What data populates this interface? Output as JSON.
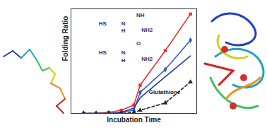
{
  "chart_data": {
    "type": "line",
    "x_label": "Incubation Time",
    "y_label": "Folding Ratio",
    "xlim": [
      0,
      10
    ],
    "ylim": [
      0,
      1
    ],
    "xticks": [],
    "yticks": [],
    "tick_labels": false,
    "grid": false,
    "x": [
      1,
      2,
      3,
      4,
      5,
      5.5,
      7.5,
      9.5
    ],
    "series": [
      {
        "color": "#e8302a",
        "marker": "square",
        "line_style": "solid",
        "values": [
          0,
          0,
          0.01,
          0.03,
          0.08,
          0.27,
          0.6,
          0.95
        ]
      },
      {
        "color": "#2f5fd0",
        "marker": "diamond",
        "line_style": "solid",
        "values": [
          0,
          0,
          0,
          0.01,
          0.03,
          0.2,
          0.42,
          0.7
        ]
      },
      {
        "color": "#1f3f9a",
        "marker": "none",
        "line_style": "solid",
        "values": [
          0,
          0,
          0,
          0.01,
          0.05,
          0.15,
          0.35,
          0.55
        ]
      },
      {
        "name": "Glutathione",
        "color": "#222222",
        "marker": "triangle",
        "line_style": "dashed",
        "values": [
          0,
          0,
          0,
          0,
          0.01,
          0.03,
          0.1,
          0.3
        ]
      }
    ],
    "annotations": [
      {
        "text": "Glutathione",
        "x": 6.2,
        "y": 0.2,
        "color": "#222222"
      },
      {
        "text": "HS",
        "x": 2.2,
        "y": 0.86,
        "color": "#3a2a6a"
      },
      {
        "text": "N",
        "x": 4.0,
        "y": 0.86,
        "color": "#3a2a6a"
      },
      {
        "text": "H",
        "x": 4.0,
        "y": 0.79,
        "color": "#3a2a6a"
      },
      {
        "text": "NH",
        "x": 5.2,
        "y": 0.94,
        "color": "#3a2a6a"
      },
      {
        "text": "NH2",
        "x": 5.6,
        "y": 0.8,
        "color": "#3a2a6a"
      },
      {
        "text": "HS",
        "x": 2.2,
        "y": 0.58,
        "color": "#3a2a6a"
      },
      {
        "text": "N",
        "x": 4.0,
        "y": 0.58,
        "color": "#3a2a6a"
      },
      {
        "text": "H",
        "x": 4.0,
        "y": 0.51,
        "color": "#3a2a6a"
      },
      {
        "text": "O",
        "x": 5.2,
        "y": 0.67,
        "color": "#3a2a6a"
      },
      {
        "text": "NH2",
        "x": 5.6,
        "y": 0.52,
        "color": "#3a2a6a"
      }
    ]
  }
}
